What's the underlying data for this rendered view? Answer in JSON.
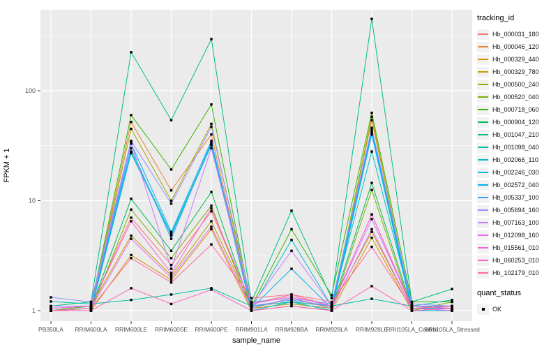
{
  "chart_data": {
    "type": "line",
    "title": "",
    "xlabel": "sample_name",
    "ylabel": "FPKM + 1",
    "y_scale": "log10",
    "y_ticks": [
      1,
      10,
      100
    ],
    "y_tick_labels": [
      "1",
      "10",
      "100"
    ],
    "ylim": [
      1,
      540
    ],
    "grid": "on",
    "panel_bg": "#EBEBEB",
    "grid_color": "#FFFFFF",
    "point_color": "#000000",
    "legend_position": "right",
    "legend_title": "tracking_id",
    "legend2_title": "quant_status",
    "legend2_items": [
      {
        "label": "OK",
        "marker": "black-point"
      }
    ],
    "categories": [
      "PB350LA",
      "RRIM600LA",
      "RRIM600LE",
      "RRIM600SE",
      "RRIM600PE",
      "RRIM901LA",
      "RRIM928BA",
      "RRIM928LA",
      "RRIM928LE",
      "RRII105LA_Control",
      "RRII105LA_Stressed"
    ],
    "series": [
      {
        "name": "Hb_000031_180",
        "color": "#F8766D",
        "values": [
          1.05,
          1.1,
          7.0,
          2.6,
          8.0,
          1.15,
          1.4,
          1.1,
          7.5,
          1.05,
          1.05
        ]
      },
      {
        "name": "Hb_000046_120",
        "color": "#EA8331",
        "values": [
          1.0,
          1.05,
          52,
          12.4,
          40,
          1.05,
          1.3,
          1.05,
          54,
          1.1,
          1.05
        ]
      },
      {
        "name": "Hb_000329_440",
        "color": "#D89000",
        "values": [
          1.0,
          1.0,
          3.2,
          1.9,
          5.5,
          1.0,
          1.1,
          1.0,
          4.6,
          1.0,
          1.0
        ]
      },
      {
        "name": "Hb_000329_780",
        "color": "#C09B00",
        "values": [
          1.05,
          1.1,
          4.8,
          2.1,
          6.5,
          1.1,
          1.2,
          1.1,
          5.2,
          1.05,
          1.1
        ]
      },
      {
        "name": "Hb_000500_240",
        "color": "#A3A500",
        "values": [
          1.0,
          1.05,
          45,
          10.0,
          50,
          1.05,
          1.15,
          1.05,
          58,
          1.05,
          1.0
        ]
      },
      {
        "name": "Hb_000520_040",
        "color": "#7CAE00",
        "values": [
          1.0,
          1.0,
          8.3,
          3.0,
          9.0,
          1.0,
          1.2,
          1.0,
          12.5,
          1.0,
          1.2
        ]
      },
      {
        "name": "Hb_000718_060",
        "color": "#39B600",
        "values": [
          1.0,
          1.1,
          60,
          19.2,
          75,
          1.1,
          5.5,
          1.38,
          63,
          1.2,
          1.2
        ]
      },
      {
        "name": "Hb_000904_120",
        "color": "#00BB4E",
        "values": [
          1.0,
          1.05,
          10.4,
          3.5,
          12.0,
          1.05,
          1.3,
          1.05,
          14.5,
          1.05,
          1.1
        ]
      },
      {
        "name": "Hb_001047_210",
        "color": "#00BF7D",
        "values": [
          1.1,
          1.2,
          224,
          54,
          295,
          1.2,
          8.1,
          1.3,
          450,
          1.2,
          1.57
        ]
      },
      {
        "name": "Hb_001098_040",
        "color": "#00C1A3",
        "values": [
          1.21,
          1.15,
          1.25,
          1.4,
          1.6,
          1.1,
          1.2,
          1.1,
          1.28,
          1.1,
          1.25
        ]
      },
      {
        "name": "Hb_002066_110",
        "color": "#00BFC4",
        "values": [
          1.0,
          1.05,
          28,
          5.0,
          33,
          1.05,
          4.4,
          1.1,
          28,
          1.1,
          1.05
        ]
      },
      {
        "name": "Hb_002246_030",
        "color": "#00BAE0",
        "values": [
          1.0,
          1.0,
          27,
          4.8,
          32,
          1.0,
          1.2,
          1.0,
          40,
          1.0,
          1.0
        ]
      },
      {
        "name": "Hb_002572_040",
        "color": "#00B0F6",
        "values": [
          1.0,
          1.05,
          33,
          5.2,
          35,
          1.05,
          2.4,
          1.05,
          42,
          1.05,
          1.05
        ]
      },
      {
        "name": "Hb_005337_100",
        "color": "#35A2FF",
        "values": [
          1.05,
          1.1,
          30,
          4.5,
          34,
          1.1,
          1.25,
          1.1,
          44,
          1.1,
          1.1
        ]
      },
      {
        "name": "Hb_005694_160",
        "color": "#9590FF",
        "values": [
          1.32,
          1.2,
          35,
          9.4,
          47,
          1.2,
          1.3,
          1.15,
          46,
          1.15,
          1.1
        ]
      },
      {
        "name": "Hb_007163_100",
        "color": "#C77CFF",
        "values": [
          1.1,
          1.1,
          34,
          2.4,
          30,
          1.1,
          3.5,
          1.1,
          6.8,
          1.1,
          1.05
        ]
      },
      {
        "name": "Hb_012098_160",
        "color": "#E76BF3",
        "values": [
          1.0,
          1.05,
          4.5,
          2.0,
          5.8,
          1.05,
          1.3,
          1.05,
          5.5,
          1.05,
          1.0
        ]
      },
      {
        "name": "Hb_015561_010",
        "color": "#FA62DB",
        "values": [
          1.05,
          1.1,
          6.5,
          2.2,
          8.5,
          1.15,
          1.35,
          1.1,
          7.5,
          1.1,
          1.05
        ]
      },
      {
        "name": "Hb_060253_010",
        "color": "#FF62BC",
        "values": [
          1.0,
          1.0,
          1.6,
          1.15,
          1.55,
          1.0,
          1.1,
          1.0,
          1.67,
          1.0,
          1.05
        ]
      },
      {
        "name": "Hb_102179_010",
        "color": "#FF6A98",
        "values": [
          1.0,
          1.05,
          3.0,
          1.8,
          4.0,
          1.3,
          1.4,
          1.2,
          3.8,
          1.05,
          1.1
        ]
      }
    ]
  }
}
